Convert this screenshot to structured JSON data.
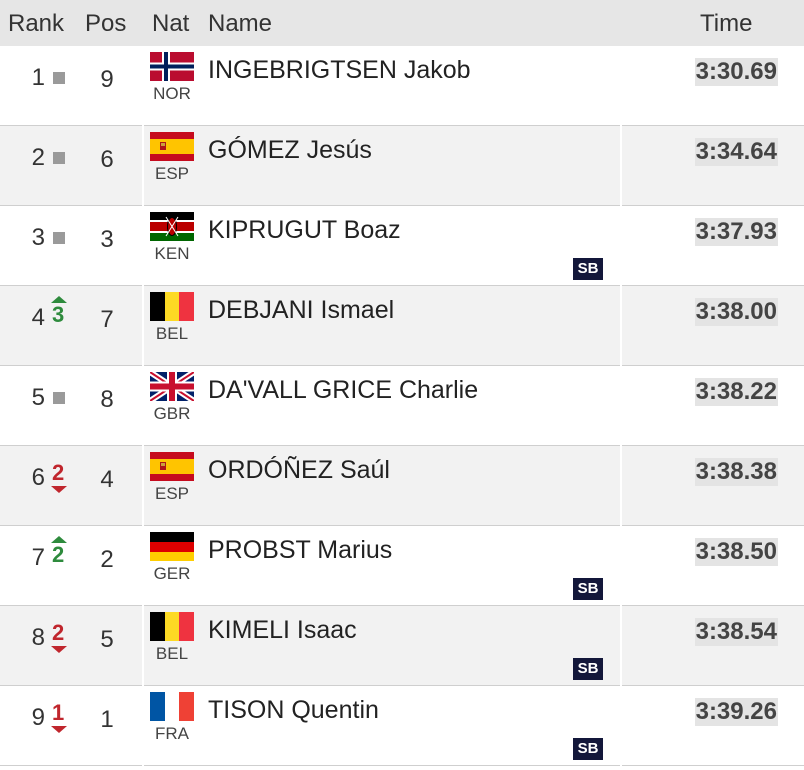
{
  "header": {
    "rank": "Rank",
    "pos": "Pos",
    "nat": "Nat",
    "name": "Name",
    "time": "Time"
  },
  "rows": [
    {
      "rank": "1",
      "movement": "same",
      "pos": "9",
      "nat": "NOR",
      "name": "INGEBRIGTSEN Jakob",
      "time": "3:30.69"
    },
    {
      "rank": "2",
      "movement": "same",
      "pos": "6",
      "nat": "ESP",
      "name": "GÓMEZ Jesús",
      "time": "3:34.64"
    },
    {
      "rank": "3",
      "movement": "same",
      "pos": "3",
      "nat": "KEN",
      "name": "KIPRUGUT Boaz",
      "time": "3:37.93",
      "note": "SB"
    },
    {
      "rank": "4",
      "movement": "up",
      "change": "3",
      "pos": "7",
      "nat": "BEL",
      "name": "DEBJANI Ismael",
      "time": "3:38.00"
    },
    {
      "rank": "5",
      "movement": "same",
      "pos": "8",
      "nat": "GBR",
      "name": "DA'VALL GRICE Charlie",
      "time": "3:38.22"
    },
    {
      "rank": "6",
      "movement": "down",
      "change": "2",
      "pos": "4",
      "nat": "ESP",
      "name": "ORDÓÑEZ Saúl",
      "time": "3:38.38"
    },
    {
      "rank": "7",
      "movement": "up",
      "change": "2",
      "pos": "2",
      "nat": "GER",
      "name": "PROBST Marius",
      "time": "3:38.50",
      "note": "SB"
    },
    {
      "rank": "8",
      "movement": "down",
      "change": "2",
      "pos": "5",
      "nat": "BEL",
      "name": "KIMELI Isaac",
      "time": "3:38.54",
      "note": "SB"
    },
    {
      "rank": "9",
      "movement": "down",
      "change": "1",
      "pos": "1",
      "nat": "FRA",
      "name": "TISON Quentin",
      "time": "3:39.26",
      "note": "SB"
    }
  ]
}
